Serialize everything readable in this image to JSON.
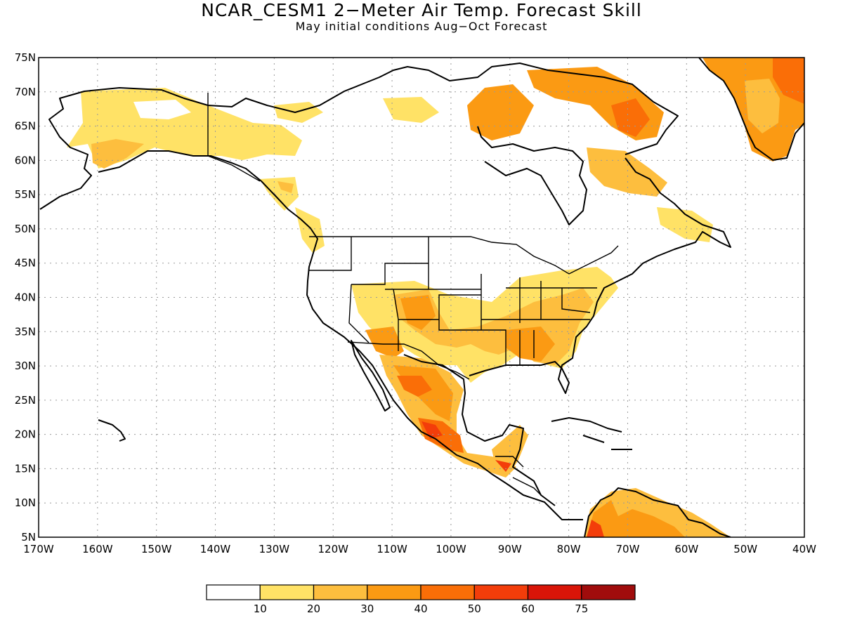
{
  "title": "NCAR_CESM1 2−Meter Air Temp. Forecast Skill",
  "subtitle": "May initial conditions  Aug−Oct Forecast",
  "axes": {
    "lat_labels": [
      "75N",
      "70N",
      "65N",
      "60N",
      "55N",
      "50N",
      "45N",
      "40N",
      "35N",
      "30N",
      "25N",
      "20N",
      "15N",
      "10N",
      "5N"
    ],
    "lon_labels": [
      "170W",
      "160W",
      "150W",
      "140W",
      "130W",
      "120W",
      "110W",
      "100W",
      "90W",
      "80W",
      "70W",
      "60W",
      "50W",
      "40W"
    ]
  },
  "colorbar": {
    "labels": [
      "10",
      "20",
      "30",
      "40",
      "50",
      "60",
      "75"
    ],
    "colors": [
      "#ffffff",
      "#ffe266",
      "#fdbe3e",
      "#fb9a13",
      "#fa6e07",
      "#f33d0a",
      "#d91508",
      "#a00c0c"
    ]
  },
  "colors": {
    "grid": "#9a9a9a",
    "coast": "#000000"
  }
}
